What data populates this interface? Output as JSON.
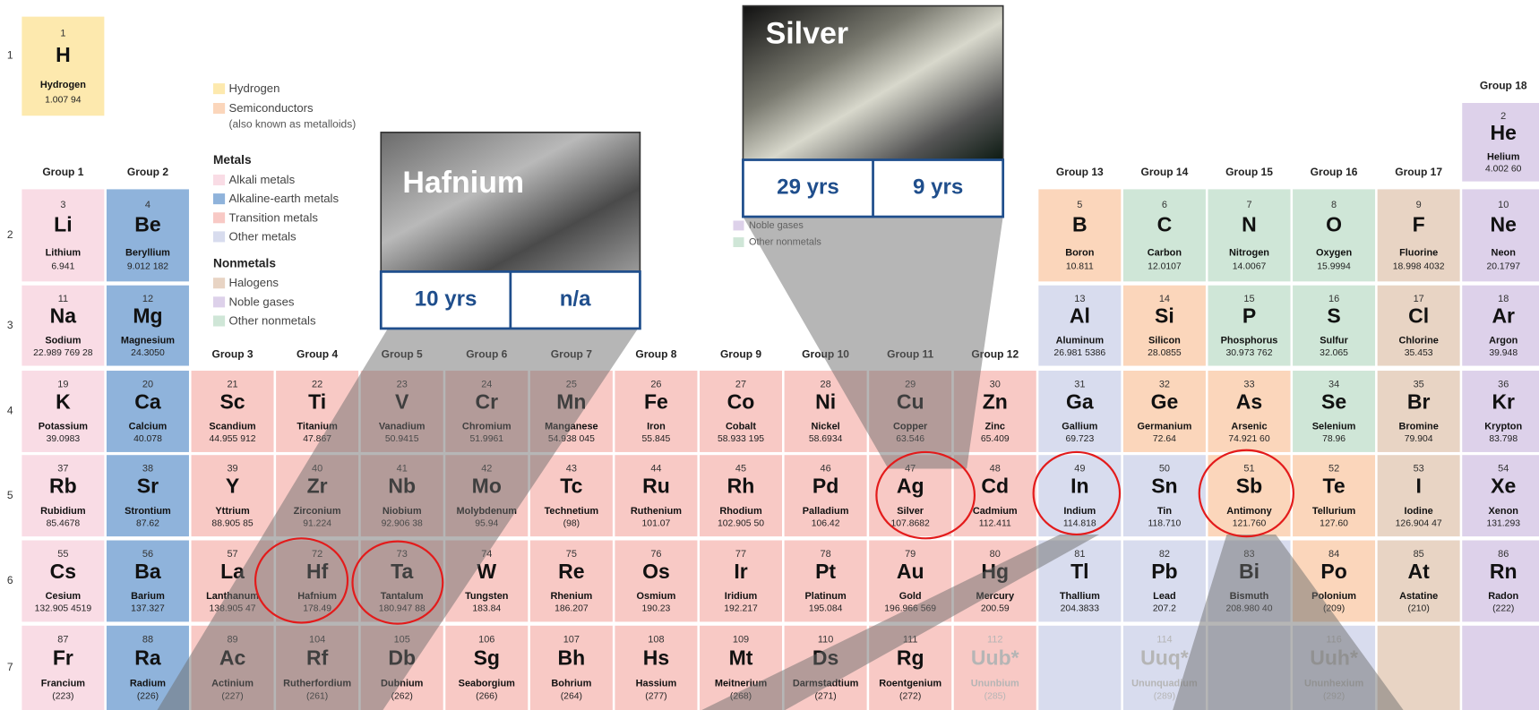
{
  "periods": [
    {
      "label": "1",
      "cells": [
        {
          "number": 1,
          "symbol": "H",
          "name": "Hydrogen",
          "mass": "1.007 94",
          "color": "#fde9ae"
        },
        null,
        null,
        null,
        null,
        null,
        null,
        null,
        null,
        null,
        null,
        null,
        null,
        null,
        null,
        null,
        null,
        {
          "number": 2,
          "symbol": "He",
          "name": "Helium",
          "mass": "4.002 60",
          "color": "#ddd1ea"
        }
      ]
    },
    {
      "label": "2",
      "cells": [
        {
          "number": 3,
          "symbol": "Li",
          "name": "Lithium",
          "mass": "6.941",
          "color": "#f9dce5"
        },
        {
          "number": 4,
          "symbol": "Be",
          "name": "Beryllium",
          "mass": "9.012 182",
          "color": "#8fb3db"
        },
        null,
        null,
        null,
        null,
        null,
        null,
        null,
        null,
        null,
        null,
        {
          "number": 5,
          "symbol": "B",
          "name": "Boron",
          "mass": "10.811",
          "color": "#fbd6bb"
        },
        {
          "number": 6,
          "symbol": "C",
          "name": "Carbon",
          "mass": "12.0107",
          "color": "#cfe6d7"
        },
        {
          "number": 7,
          "symbol": "N",
          "name": "Nitrogen",
          "mass": "14.0067",
          "color": "#cfe6d7"
        },
        {
          "number": 8,
          "symbol": "O",
          "name": "Oxygen",
          "mass": "15.9994",
          "color": "#cfe6d7"
        },
        {
          "number": 9,
          "symbol": "F",
          "name": "Fluorine",
          "mass": "18.998 4032",
          "color": "#e8d4c4"
        },
        {
          "number": 10,
          "symbol": "Ne",
          "name": "Neon",
          "mass": "20.1797",
          "color": "#ddd1ea"
        }
      ]
    },
    {
      "label": "3",
      "cells": [
        {
          "number": 11,
          "symbol": "Na",
          "name": "Sodium",
          "mass": "22.989 769 28",
          "color": "#f9dce5"
        },
        {
          "number": 12,
          "symbol": "Mg",
          "name": "Magnesium",
          "mass": "24.3050",
          "color": "#8fb3db"
        },
        null,
        null,
        null,
        null,
        null,
        null,
        null,
        null,
        null,
        null,
        {
          "number": 13,
          "symbol": "Al",
          "name": "Aluminum",
          "mass": "26.981 5386",
          "color": "#d8dcee"
        },
        {
          "number": 14,
          "symbol": "Si",
          "name": "Silicon",
          "mass": "28.0855",
          "color": "#fbd6bb"
        },
        {
          "number": 15,
          "symbol": "P",
          "name": "Phosphorus",
          "mass": "30.973 762",
          "color": "#cfe6d7"
        },
        {
          "number": 16,
          "symbol": "S",
          "name": "Sulfur",
          "mass": "32.065",
          "color": "#cfe6d7"
        },
        {
          "number": 17,
          "symbol": "Cl",
          "name": "Chlorine",
          "mass": "35.453",
          "color": "#e8d4c4"
        },
        {
          "number": 18,
          "symbol": "Ar",
          "name": "Argon",
          "mass": "39.948",
          "color": "#ddd1ea"
        }
      ]
    },
    {
      "label": "4",
      "cells": [
        {
          "number": 19,
          "symbol": "K",
          "name": "Potassium",
          "mass": "39.0983",
          "color": "#f9dce5"
        },
        {
          "number": 20,
          "symbol": "Ca",
          "name": "Calcium",
          "mass": "40.078",
          "color": "#8fb3db"
        },
        {
          "number": 21,
          "symbol": "Sc",
          "name": "Scandium",
          "mass": "44.955 912",
          "color": "#f8c9c5"
        },
        {
          "number": 22,
          "symbol": "Ti",
          "name": "Titanium",
          "mass": "47.867",
          "color": "#f8c9c5"
        },
        {
          "number": 23,
          "symbol": "V",
          "name": "Vanadium",
          "mass": "50.9415",
          "color": "#f8c9c5"
        },
        {
          "number": 24,
          "symbol": "Cr",
          "name": "Chromium",
          "mass": "51.9961",
          "color": "#f8c9c5"
        },
        {
          "number": 25,
          "symbol": "Mn",
          "name": "Manganese",
          "mass": "54.938 045",
          "color": "#f8c9c5"
        },
        {
          "number": 26,
          "symbol": "Fe",
          "name": "Iron",
          "mass": "55.845",
          "color": "#f8c9c5"
        },
        {
          "number": 27,
          "symbol": "Co",
          "name": "Cobalt",
          "mass": "58.933 195",
          "color": "#f8c9c5"
        },
        {
          "number": 28,
          "symbol": "Ni",
          "name": "Nickel",
          "mass": "58.6934",
          "color": "#f8c9c5"
        },
        {
          "number": 29,
          "symbol": "Cu",
          "name": "Copper",
          "mass": "63.546",
          "color": "#f8c9c5"
        },
        {
          "number": 30,
          "symbol": "Zn",
          "name": "Zinc",
          "mass": "65.409",
          "color": "#f8c9c5"
        },
        {
          "number": 31,
          "symbol": "Ga",
          "name": "Gallium",
          "mass": "69.723",
          "color": "#d8dcee"
        },
        {
          "number": 32,
          "symbol": "Ge",
          "name": "Germanium",
          "mass": "72.64",
          "color": "#fbd6bb"
        },
        {
          "number": 33,
          "symbol": "As",
          "name": "Arsenic",
          "mass": "74.921 60",
          "color": "#fbd6bb"
        },
        {
          "number": 34,
          "symbol": "Se",
          "name": "Selenium",
          "mass": "78.96",
          "color": "#cfe6d7"
        },
        {
          "number": 35,
          "symbol": "Br",
          "name": "Bromine",
          "mass": "79.904",
          "color": "#e8d4c4"
        },
        {
          "number": 36,
          "symbol": "Kr",
          "name": "Krypton",
          "mass": "83.798",
          "color": "#ddd1ea"
        }
      ]
    },
    {
      "label": "5",
      "cells": [
        {
          "number": 37,
          "symbol": "Rb",
          "name": "Rubidium",
          "mass": "85.4678",
          "color": "#f9dce5"
        },
        {
          "number": 38,
          "symbol": "Sr",
          "name": "Strontium",
          "mass": "87.62",
          "color": "#8fb3db"
        },
        {
          "number": 39,
          "symbol": "Y",
          "name": "Yttrium",
          "mass": "88.905 85",
          "color": "#f8c9c5"
        },
        {
          "number": 40,
          "symbol": "Zr",
          "name": "Zirconium",
          "mass": "91.224",
          "color": "#f8c9c5"
        },
        {
          "number": 41,
          "symbol": "Nb",
          "name": "Niobium",
          "mass": "92.906 38",
          "color": "#f8c9c5"
        },
        {
          "number": 42,
          "symbol": "Mo",
          "name": "Molybdenum",
          "mass": "95.94",
          "color": "#f8c9c5"
        },
        {
          "number": 43,
          "symbol": "Tc",
          "name": "Technetium",
          "mass": "(98)",
          "color": "#f8c9c5"
        },
        {
          "number": 44,
          "symbol": "Ru",
          "name": "Ruthenium",
          "mass": "101.07",
          "color": "#f8c9c5"
        },
        {
          "number": 45,
          "symbol": "Rh",
          "name": "Rhodium",
          "mass": "102.905 50",
          "color": "#f8c9c5"
        },
        {
          "number": 46,
          "symbol": "Pd",
          "name": "Palladium",
          "mass": "106.42",
          "color": "#f8c9c5"
        },
        {
          "number": 47,
          "symbol": "Ag",
          "name": "Silver",
          "mass": "107.8682",
          "color": "#f8c9c5"
        },
        {
          "number": 48,
          "symbol": "Cd",
          "name": "Cadmium",
          "mass": "112.411",
          "color": "#f8c9c5"
        },
        {
          "number": 49,
          "symbol": "In",
          "name": "Indium",
          "mass": "114.818",
          "color": "#d8dcee"
        },
        {
          "number": 50,
          "symbol": "Sn",
          "name": "Tin",
          "mass": "118.710",
          "color": "#d8dcee"
        },
        {
          "number": 51,
          "symbol": "Sb",
          "name": "Antimony",
          "mass": "121.760",
          "color": "#fbd6bb"
        },
        {
          "number": 52,
          "symbol": "Te",
          "name": "Tellurium",
          "mass": "127.60",
          "color": "#fbd6bb"
        },
        {
          "number": 53,
          "symbol": "I",
          "name": "Iodine",
          "mass": "126.904 47",
          "color": "#e8d4c4"
        },
        {
          "number": 54,
          "symbol": "Xe",
          "name": "Xenon",
          "mass": "131.293",
          "color": "#ddd1ea"
        }
      ]
    },
    {
      "label": "6",
      "cells": [
        {
          "number": 55,
          "symbol": "Cs",
          "name": "Cesium",
          "mass": "132.905 4519",
          "color": "#f9dce5"
        },
        {
          "number": 56,
          "symbol": "Ba",
          "name": "Barium",
          "mass": "137.327",
          "color": "#8fb3db"
        },
        {
          "number": 57,
          "symbol": "La",
          "name": "Lanthanum",
          "mass": "138.905 47",
          "color": "#f8c9c5"
        },
        {
          "number": 72,
          "symbol": "Hf",
          "name": "Hafnium",
          "mass": "178.49",
          "color": "#f8c9c5"
        },
        {
          "number": 73,
          "symbol": "Ta",
          "name": "Tantalum",
          "mass": "180.947 88",
          "color": "#f8c9c5"
        },
        {
          "number": 74,
          "symbol": "W",
          "name": "Tungsten",
          "mass": "183.84",
          "color": "#f8c9c5"
        },
        {
          "number": 75,
          "symbol": "Re",
          "name": "Rhenium",
          "mass": "186.207",
          "color": "#f8c9c5"
        },
        {
          "number": 76,
          "symbol": "Os",
          "name": "Osmium",
          "mass": "190.23",
          "color": "#f8c9c5"
        },
        {
          "number": 77,
          "symbol": "Ir",
          "name": "Iridium",
          "mass": "192.217",
          "color": "#f8c9c5"
        },
        {
          "number": 78,
          "symbol": "Pt",
          "name": "Platinum",
          "mass": "195.084",
          "color": "#f8c9c5"
        },
        {
          "number": 79,
          "symbol": "Au",
          "name": "Gold",
          "mass": "196.966 569",
          "color": "#f8c9c5"
        },
        {
          "number": 80,
          "symbol": "Hg",
          "name": "Mercury",
          "mass": "200.59",
          "color": "#f8c9c5"
        },
        {
          "number": 81,
          "symbol": "Tl",
          "name": "Thallium",
          "mass": "204.3833",
          "color": "#d8dcee"
        },
        {
          "number": 82,
          "symbol": "Pb",
          "name": "Lead",
          "mass": "207.2",
          "color": "#d8dcee"
        },
        {
          "number": 83,
          "symbol": "Bi",
          "name": "Bismuth",
          "mass": "208.980 40",
          "color": "#d8dcee"
        },
        {
          "number": 84,
          "symbol": "Po",
          "name": "Polonium",
          "mass": "(209)",
          "color": "#fbd6bb"
        },
        {
          "number": 85,
          "symbol": "At",
          "name": "Astatine",
          "mass": "(210)",
          "color": "#e8d4c4"
        },
        {
          "number": 86,
          "symbol": "Rn",
          "name": "Radon",
          "mass": "(222)",
          "color": "#ddd1ea"
        }
      ]
    },
    {
      "label": "7",
      "cells": [
        {
          "number": 87,
          "symbol": "Fr",
          "name": "Francium",
          "mass": "(223)",
          "color": "#f9dce5"
        },
        {
          "number": 88,
          "symbol": "Ra",
          "name": "Radium",
          "mass": "(226)",
          "color": "#8fb3db"
        },
        {
          "number": 89,
          "symbol": "Ac",
          "name": "Actinium",
          "mass": "(227)",
          "color": "#f8c9c5"
        },
        {
          "number": 104,
          "symbol": "Rf",
          "name": "Rutherfordium",
          "mass": "(261)",
          "color": "#f8c9c5"
        },
        {
          "number": 105,
          "symbol": "Db",
          "name": "Dubnium",
          "mass": "(262)",
          "color": "#f8c9c5"
        },
        {
          "number": 106,
          "symbol": "Sg",
          "name": "Seaborgium",
          "mass": "(266)",
          "color": "#f8c9c5"
        },
        {
          "number": 107,
          "symbol": "Bh",
          "name": "Bohrium",
          "mass": "(264)",
          "color": "#f8c9c5"
        },
        {
          "number": 108,
          "symbol": "Hs",
          "name": "Hassium",
          "mass": "(277)",
          "color": "#f8c9c5"
        },
        {
          "number": 109,
          "symbol": "Mt",
          "name": "Meitnerium",
          "mass": "(268)",
          "color": "#f8c9c5"
        },
        {
          "number": 110,
          "symbol": "Ds",
          "name": "Darmstadtium",
          "mass": "(271)",
          "color": "#f8c9c5"
        },
        {
          "number": 111,
          "symbol": "Rg",
          "name": "Roentgenium",
          "mass": "(272)",
          "color": "#f8c9c5"
        },
        {
          "number": 112,
          "symbol": "Uub*",
          "name": "Ununbium",
          "mass": "(285)",
          "color": "#f8c9c5",
          "text_color": "#b5b5b5"
        },
        {
          "color": "#d8dcee"
        },
        {
          "number": 114,
          "symbol": "Uuq*",
          "name": "Ununquadium",
          "mass": "(289)",
          "color": "#d8dcee",
          "text_color": "#b5b5b5"
        },
        {
          "color": "#d8dcee"
        },
        {
          "number": 116,
          "symbol": "Uuh*",
          "name": "Ununhexium",
          "mass": "(292)",
          "color": "#d8dcee",
          "text_color": "#b5b5b5"
        },
        {
          "color": "#e8d4c4"
        },
        {
          "color": "#ddd1ea"
        }
      ]
    }
  ],
  "groups": [
    "Group 1",
    "Group 2",
    "Group 3",
    "Group 4",
    "Group 5",
    "Group 6",
    "Group 7",
    "Group 8",
    "Group 9",
    "Group 10",
    "Group 11",
    "Group 12",
    "Group 13",
    "Group 14",
    "Group 15",
    "Group 16",
    "Group 17",
    "Group 18"
  ],
  "legend": {
    "top_items": [
      {
        "label": "Hydrogen",
        "color": "#fde9ae"
      },
      {
        "label": "Semiconductors",
        "note": "(also known as metalloids)",
        "color": "#fbd6bb"
      }
    ],
    "sections": [
      {
        "heading": "Metals",
        "items": [
          {
            "label": "Alkali metals",
            "color": "#f9dce5"
          },
          {
            "label": "Alkaline-earth metals",
            "color": "#8fb3db"
          },
          {
            "label": "Transition metals",
            "color": "#f8c9c5"
          },
          {
            "label": "Other metals",
            "color": "#d8dcee"
          }
        ]
      },
      {
        "heading": "Nonmetals",
        "items": [
          {
            "label": "Halogens",
            "color": "#e8d4c4"
          },
          {
            "label": "Noble gases",
            "color": "#ddd1ea"
          },
          {
            "label": "Other nonmetals",
            "color": "#cfe6d7"
          }
        ]
      }
    ]
  },
  "legend_partial": [
    {
      "label": "Noble gases",
      "color": "#ddd1ea"
    },
    {
      "label": "Other nonmetals",
      "color": "#cfe6d7"
    }
  ],
  "callouts": [
    {
      "title": "Hafnium",
      "values": [
        "10 yrs",
        "n/a"
      ]
    },
    {
      "title": "Silver",
      "values": [
        "29 yrs",
        "9 yrs"
      ]
    }
  ]
}
